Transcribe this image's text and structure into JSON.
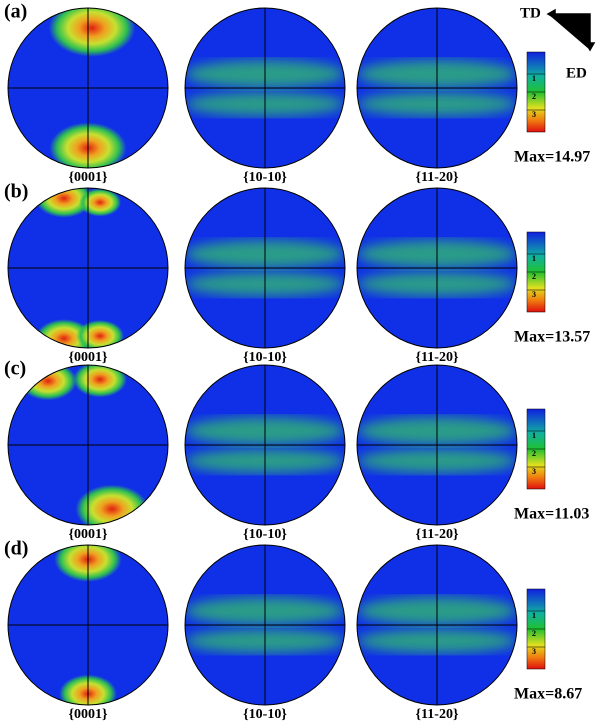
{
  "legend": {
    "td": "TD",
    "ed": "ED"
  },
  "rows": [
    {
      "label": "(a)",
      "panels": [
        "{0001}",
        "{10-10}",
        "{11-20}"
      ],
      "max": "Max=14.97",
      "colorbar_ticks": [
        "1",
        "2",
        "3"
      ]
    },
    {
      "label": "(b)",
      "panels": [
        "{0001}",
        "{10-10}",
        "{11-20}"
      ],
      "max": "Max=13.57",
      "colorbar_ticks": [
        "1",
        "2",
        "3"
      ]
    },
    {
      "label": "(c)",
      "panels": [
        "{0001}",
        "{10-10}",
        "{11-20}"
      ],
      "max": "Max=11.03",
      "colorbar_ticks": [
        "1",
        "2",
        "3"
      ]
    },
    {
      "label": "(d)",
      "panels": [
        "{0001}",
        "{10-10}",
        "{11-20}"
      ],
      "max": "Max=8.67",
      "colorbar_ticks": [
        "1",
        "2",
        "3"
      ]
    }
  ]
}
